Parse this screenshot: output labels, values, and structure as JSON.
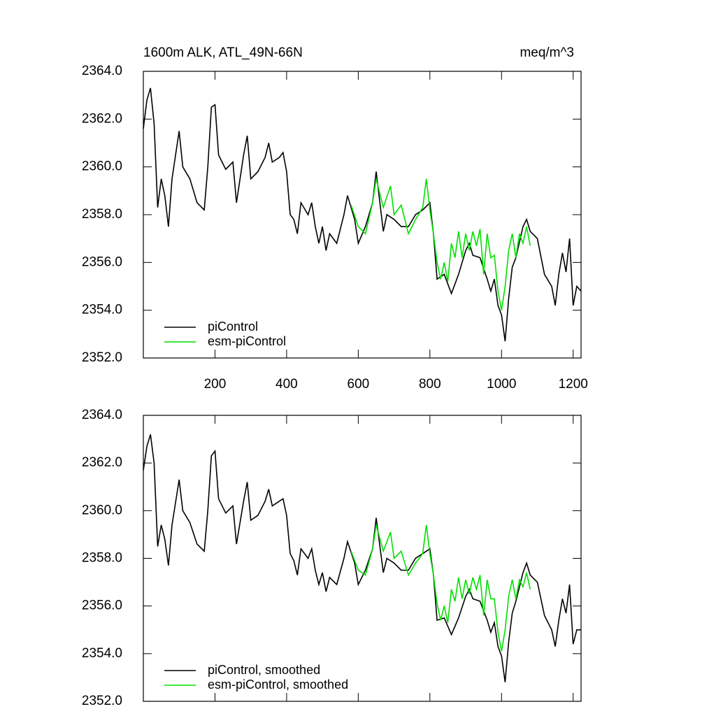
{
  "chart_data": [
    {
      "type": "line",
      "title": "1600m ALK, ATL_49N-66N",
      "units": "meq/m^3",
      "xlim": [
        0,
        1222
      ],
      "ylim": [
        2352,
        2364
      ],
      "xticks": [
        200,
        400,
        600,
        800,
        1000,
        1200
      ],
      "xticklabels": true,
      "yticks": [
        {
          "value": 2352,
          "label": "2352.0"
        },
        {
          "value": 2354,
          "label": "2354.0"
        },
        {
          "value": 2356,
          "label": "2356.0"
        },
        {
          "value": 2358,
          "label": "2358.0"
        },
        {
          "value": 2360,
          "label": "2360.0"
        },
        {
          "value": 2362,
          "label": "2362.0"
        },
        {
          "value": 2364,
          "label": "2364.0"
        }
      ],
      "legend": "lower left",
      "series": [
        {
          "name": "piControl",
          "color": "#000000",
          "x": [
            0,
            10,
            20,
            30,
            40,
            50,
            60,
            70,
            80,
            100,
            110,
            130,
            150,
            170,
            180,
            190,
            200,
            210,
            230,
            250,
            260,
            280,
            290,
            300,
            320,
            340,
            350,
            360,
            380,
            390,
            400,
            410,
            420,
            430,
            440,
            460,
            470,
            480,
            490,
            500,
            510,
            520,
            540,
            560,
            570,
            590,
            600,
            620,
            640,
            650,
            670,
            680,
            700,
            720,
            740,
            760,
            780,
            800,
            810,
            820,
            840,
            860,
            880,
            900,
            910,
            920,
            940,
            960,
            970,
            980,
            990,
            1000,
            1010,
            1020,
            1030,
            1040,
            1060,
            1070,
            1080,
            1100,
            1120,
            1140,
            1150,
            1160,
            1170,
            1180,
            1190,
            1200,
            1210,
            1222
          ],
          "values": [
            2361.6,
            2362.8,
            2363.3,
            2361.8,
            2358.3,
            2359.5,
            2358.8,
            2357.5,
            2359.5,
            2361.5,
            2360,
            2359.5,
            2358.5,
            2358.2,
            2360,
            2362.5,
            2362.6,
            2360.5,
            2359.9,
            2360.2,
            2358.5,
            2360.5,
            2361.3,
            2359.5,
            2359.8,
            2360.4,
            2361,
            2360.2,
            2360.4,
            2360.6,
            2359.8,
            2358,
            2357.8,
            2357.2,
            2358.5,
            2358,
            2358.5,
            2357.5,
            2356.8,
            2357.5,
            2356.5,
            2357.2,
            2356.8,
            2358,
            2358.8,
            2357.8,
            2356.8,
            2357.5,
            2358.5,
            2359.8,
            2357.3,
            2358,
            2357.8,
            2357.5,
            2357.5,
            2358,
            2358.2,
            2358.5,
            2357.2,
            2355.3,
            2355.5,
            2354.7,
            2355.5,
            2356.5,
            2356.8,
            2356.3,
            2356.2,
            2355.3,
            2354.8,
            2355.3,
            2354.2,
            2353.8,
            2352.7,
            2354.5,
            2355.8,
            2356.2,
            2357.5,
            2357.8,
            2357.3,
            2357,
            2355.5,
            2355,
            2354.2,
            2355.5,
            2356.4,
            2355.6,
            2357,
            2354.2,
            2355,
            2354.8
          ]
        },
        {
          "name": "esm-piControl",
          "color": "#00e000",
          "x": [
            580,
            600,
            620,
            640,
            650,
            670,
            690,
            700,
            720,
            740,
            760,
            780,
            790,
            800,
            810,
            820,
            830,
            840,
            850,
            860,
            870,
            880,
            890,
            900,
            910,
            920,
            930,
            940,
            950,
            960,
            970,
            980,
            990,
            1000,
            1010,
            1020,
            1030,
            1040,
            1050,
            1060,
            1070,
            1080
          ],
          "values": [
            2358.4,
            2357.5,
            2357.2,
            2358.5,
            2359.5,
            2358.3,
            2359.2,
            2358,
            2358.4,
            2357.2,
            2357.8,
            2358.3,
            2359.5,
            2358.2,
            2357.2,
            2356,
            2355.3,
            2356,
            2355.2,
            2356.8,
            2356.2,
            2357.3,
            2356.2,
            2357.2,
            2356.5,
            2357.3,
            2356.7,
            2357.4,
            2355.5,
            2357.2,
            2356.2,
            2356.3,
            2354.8,
            2354,
            2355,
            2356.5,
            2357.2,
            2356.2,
            2357.2,
            2356.8,
            2357.5,
            2356.7
          ]
        }
      ]
    },
    {
      "type": "line",
      "xlim": [
        0,
        1222
      ],
      "ylim": [
        2352,
        2364
      ],
      "xticks": [
        200,
        400,
        600,
        800,
        1000,
        1200
      ],
      "xticklabels": false,
      "yticks": [
        {
          "value": 2352,
          "label": "2352.0"
        },
        {
          "value": 2354,
          "label": "2354.0"
        },
        {
          "value": 2356,
          "label": "2356.0"
        },
        {
          "value": 2358,
          "label": "2358.0"
        },
        {
          "value": 2360,
          "label": "2360.0"
        },
        {
          "value": 2362,
          "label": "2362.0"
        },
        {
          "value": 2364,
          "label": "2364.0"
        }
      ],
      "legend": "lower left",
      "series": [
        {
          "name": "piControl, smoothed",
          "color": "#000000",
          "x": [
            0,
            10,
            20,
            30,
            40,
            50,
            60,
            70,
            80,
            100,
            110,
            130,
            150,
            170,
            180,
            190,
            200,
            210,
            230,
            250,
            260,
            280,
            290,
            300,
            320,
            340,
            350,
            360,
            380,
            390,
            400,
            410,
            420,
            430,
            440,
            460,
            470,
            480,
            490,
            500,
            510,
            520,
            540,
            560,
            570,
            590,
            600,
            620,
            640,
            650,
            670,
            680,
            700,
            720,
            740,
            760,
            780,
            800,
            810,
            820,
            840,
            860,
            880,
            900,
            910,
            920,
            940,
            960,
            970,
            980,
            990,
            1000,
            1010,
            1020,
            1030,
            1040,
            1060,
            1070,
            1080,
            1100,
            1120,
            1140,
            1150,
            1160,
            1170,
            1180,
            1190,
            1200,
            1210,
            1222
          ],
          "values": [
            2361.7,
            2362.7,
            2363.2,
            2362,
            2358.5,
            2359.4,
            2358.8,
            2357.7,
            2359.4,
            2361.3,
            2360,
            2359.5,
            2358.6,
            2358.3,
            2360,
            2362.3,
            2362.5,
            2360.5,
            2359.9,
            2360.2,
            2358.6,
            2360.4,
            2361.2,
            2359.6,
            2359.8,
            2360.4,
            2360.9,
            2360.2,
            2360.4,
            2360.5,
            2359.8,
            2358.2,
            2357.9,
            2357.3,
            2358.4,
            2358,
            2358.4,
            2357.5,
            2356.9,
            2357.4,
            2356.6,
            2357.2,
            2356.9,
            2358,
            2358.7,
            2357.8,
            2356.9,
            2357.5,
            2358.4,
            2359.7,
            2357.4,
            2358,
            2357.8,
            2357.5,
            2357.5,
            2358,
            2358.2,
            2358.4,
            2357.3,
            2355.4,
            2355.5,
            2354.8,
            2355.5,
            2356.4,
            2356.7,
            2356.3,
            2356.2,
            2355.4,
            2354.9,
            2355.3,
            2354.3,
            2353.9,
            2352.8,
            2354.5,
            2355.7,
            2356.2,
            2357.4,
            2357.8,
            2357.3,
            2357,
            2355.6,
            2355,
            2354.3,
            2355.4,
            2356.3,
            2355.7,
            2356.9,
            2354.4,
            2355,
            2355
          ]
        },
        {
          "name": "esm-piControl, smoothed",
          "color": "#00e000",
          "x": [
            580,
            600,
            620,
            640,
            650,
            670,
            690,
            700,
            720,
            740,
            760,
            780,
            790,
            800,
            810,
            820,
            830,
            840,
            850,
            860,
            870,
            880,
            890,
            900,
            910,
            920,
            930,
            940,
            950,
            960,
            970,
            980,
            990,
            1000,
            1010,
            1020,
            1030,
            1040,
            1050,
            1060,
            1070,
            1080
          ],
          "values": [
            2358.3,
            2357.5,
            2357.3,
            2358.4,
            2359.4,
            2358.3,
            2359.1,
            2358,
            2358.3,
            2357.3,
            2357.8,
            2358.2,
            2359.4,
            2358.2,
            2357.3,
            2356.1,
            2355.4,
            2356,
            2355.3,
            2356.7,
            2356.2,
            2357.2,
            2356.3,
            2357.1,
            2356.5,
            2357.2,
            2356.7,
            2357.3,
            2355.6,
            2357.1,
            2356.3,
            2356.3,
            2354.9,
            2354.1,
            2355,
            2356.4,
            2357.1,
            2356.3,
            2357.1,
            2356.8,
            2357.4,
            2356.7
          ]
        }
      ]
    }
  ]
}
